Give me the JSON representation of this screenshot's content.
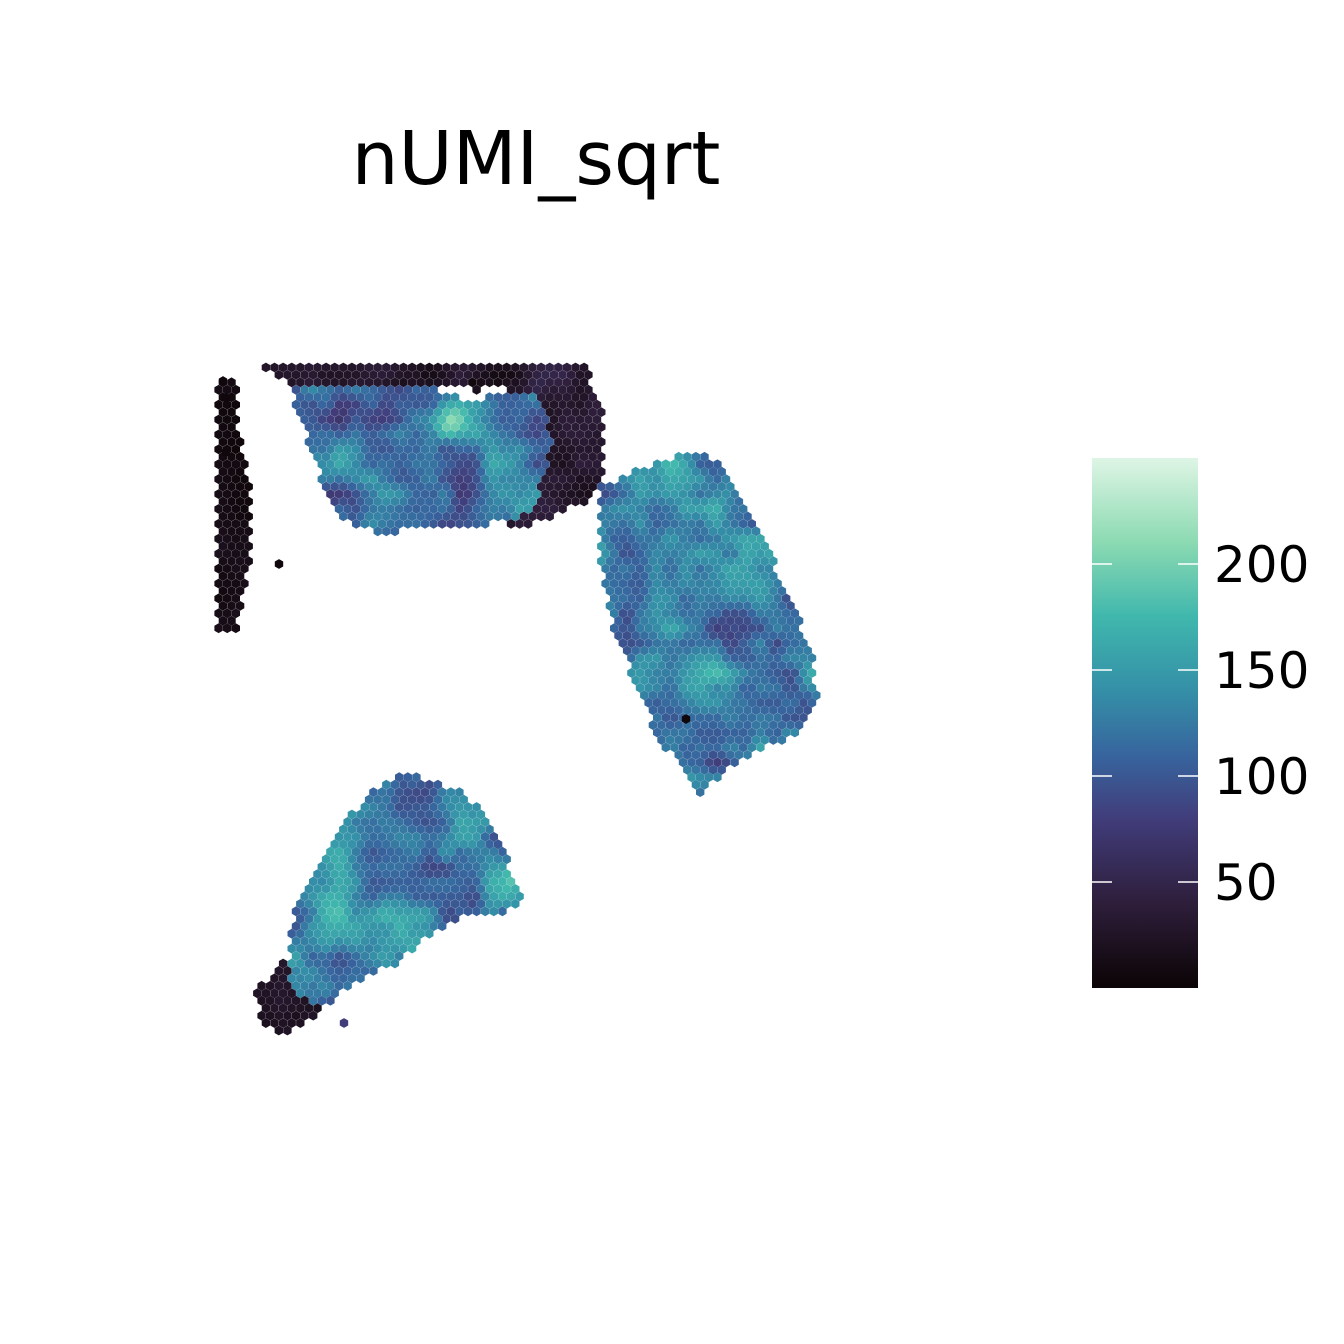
{
  "chart_data": {
    "type": "heatmap",
    "subtype": "spatial-hexbin",
    "title": "nUMI_sqrt",
    "xlabel": "",
    "ylabel": "",
    "grid": false,
    "axes_visible": false,
    "legend_position": "right",
    "colorbar": {
      "min": 0,
      "max": 250,
      "ticks": [
        50,
        100,
        150,
        200
      ],
      "tick_labels": [
        "50",
        "100",
        "150",
        "200"
      ],
      "palette": "mako-like",
      "stops": [
        {
          "value": 0,
          "color": "#0b0405"
        },
        {
          "value": 40,
          "color": "#2e1e3b"
        },
        {
          "value": 80,
          "color": "#413d7b"
        },
        {
          "value": 110,
          "color": "#37659e"
        },
        {
          "value": 140,
          "color": "#348fa7"
        },
        {
          "value": 175,
          "color": "#40b7ad"
        },
        {
          "value": 210,
          "color": "#8bdab2"
        },
        {
          "value": 250,
          "color": "#def5e5"
        }
      ]
    },
    "regions": [
      {
        "name": "upper-left tissue",
        "dominant_value_range": [
          60,
          190
        ],
        "peak_value": 230
      },
      {
        "name": "upper-left rim",
        "dominant_value_range": [
          5,
          60
        ]
      },
      {
        "name": "left strip",
        "dominant_value_range": [
          0,
          20
        ]
      },
      {
        "name": "right tissue",
        "dominant_value_range": [
          60,
          190
        ],
        "peak_value": 220
      },
      {
        "name": "lower tissue",
        "dominant_value_range": [
          60,
          190
        ],
        "peak_value": 205
      },
      {
        "name": "lower tail",
        "dominant_value_range": [
          0,
          40
        ]
      }
    ]
  }
}
